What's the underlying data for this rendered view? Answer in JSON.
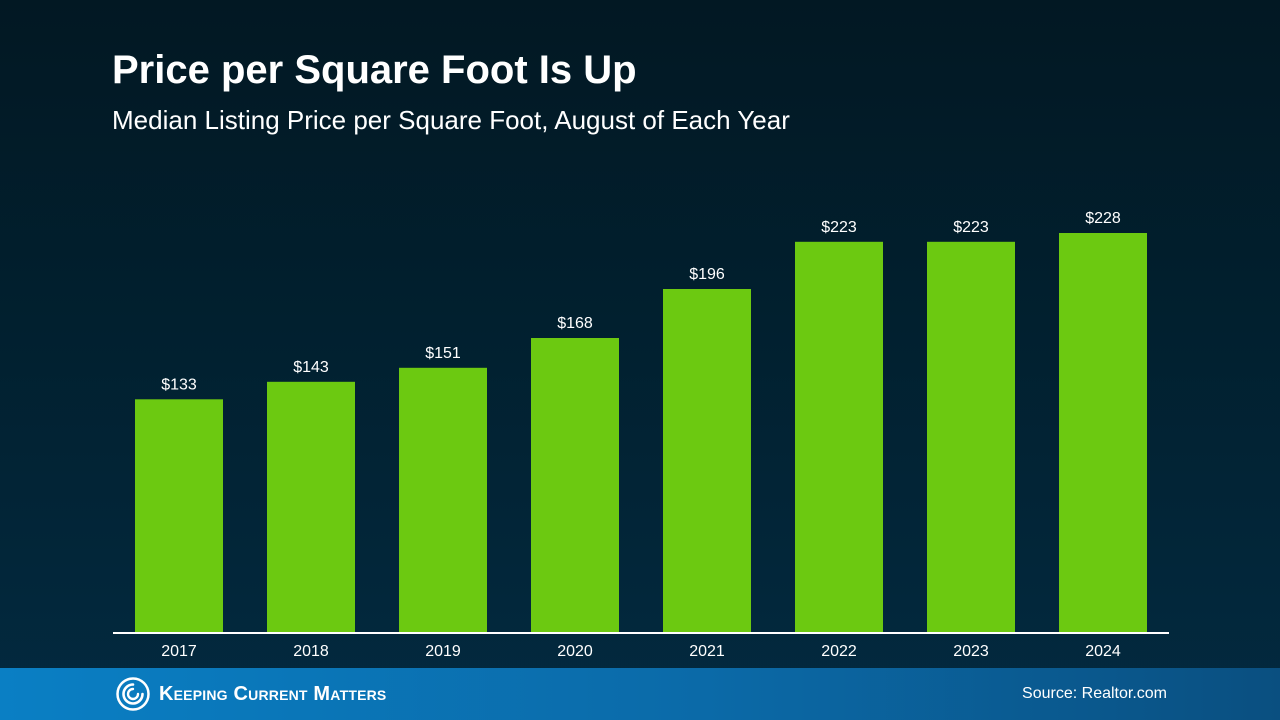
{
  "header": {
    "title": "Price per Square Foot Is Up",
    "subtitle": "Median Listing Price per Square Foot, August of Each Year"
  },
  "chart_data": {
    "type": "bar",
    "title": "Price per Square Foot Is Up",
    "subtitle": "Median Listing Price per Square Foot, August of Each Year",
    "categories": [
      "2017",
      "2018",
      "2019",
      "2020",
      "2021",
      "2022",
      "2023",
      "2024"
    ],
    "values": [
      133,
      143,
      151,
      168,
      196,
      223,
      223,
      228
    ],
    "data_labels": [
      "$133",
      "$143",
      "$151",
      "$168",
      "$196",
      "$223",
      "$223",
      "$228"
    ],
    "xlabel": "",
    "ylabel": "",
    "ylim": [
      0,
      228
    ],
    "grid": false,
    "legend": "none",
    "bar_color": "#6cc911",
    "axis_color": "#ffffff"
  },
  "footer": {
    "brand": "Keeping Current Matters",
    "logo_icon": "kcm-swirl-icon",
    "source": "Source: Realtor.com"
  }
}
